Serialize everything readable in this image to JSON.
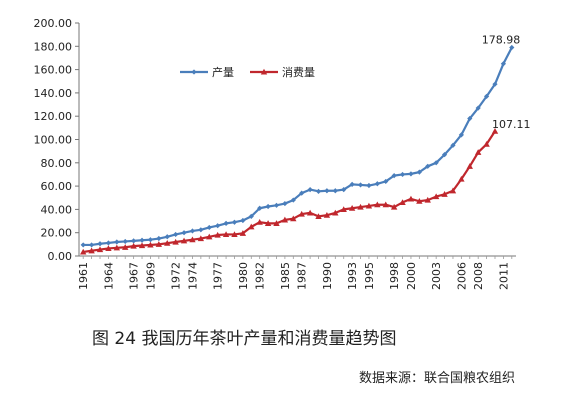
{
  "chart_data": {
    "type": "line",
    "title": "",
    "xlabel": "",
    "ylabel": "",
    "ylim": [
      0,
      200
    ],
    "yticks": [
      "0.00",
      "20.00",
      "40.00",
      "60.00",
      "80.00",
      "100.00",
      "120.00",
      "140.00",
      "160.00",
      "180.00",
      "200.00"
    ],
    "xticks": [
      "1961",
      "1964",
      "1967",
      "1969",
      "1972",
      "1974",
      "1977",
      "1980",
      "1982",
      "1985",
      "1987",
      "1990",
      "1993",
      "1995",
      "1998",
      "2000",
      "2003",
      "2006",
      "2008",
      "2011"
    ],
    "legend_position": "upper-left",
    "grid": false,
    "series": [
      {
        "name": "产量",
        "color": "#4a7ebb",
        "marker": "diamond",
        "x": [
          1961,
          1962,
          1963,
          1964,
          1965,
          1966,
          1967,
          1968,
          1969,
          1970,
          1971,
          1972,
          1973,
          1974,
          1975,
          1976,
          1977,
          1978,
          1979,
          1980,
          1981,
          1982,
          1983,
          1984,
          1985,
          1986,
          1987,
          1988,
          1989,
          1990,
          1991,
          1992,
          1993,
          1994,
          1995,
          1996,
          1997,
          1998,
          1999,
          2000,
          2001,
          2002,
          2003,
          2004,
          2005,
          2006,
          2007,
          2008,
          2009,
          2010,
          2011,
          2012
        ],
        "values": [
          9.5,
          9.5,
          10.5,
          11.2,
          12,
          12.5,
          13,
          13.5,
          14,
          15,
          16.5,
          18.5,
          20,
          21.5,
          22.5,
          24.5,
          26,
          28,
          29,
          30.5,
          34,
          41,
          42.5,
          43.5,
          45,
          48,
          54,
          57,
          55.5,
          56,
          56,
          57,
          61.5,
          61,
          60.5,
          62,
          64,
          69,
          70,
          70.5,
          72,
          77,
          80,
          87,
          95,
          104,
          118,
          127,
          137,
          147.5,
          165,
          178.98
        ]
      },
      {
        "name": "消费量",
        "color": "#c0272d",
        "marker": "triangle",
        "x": [
          1961,
          1962,
          1963,
          1964,
          1965,
          1966,
          1967,
          1968,
          1969,
          1970,
          1971,
          1972,
          1973,
          1974,
          1975,
          1976,
          1977,
          1978,
          1979,
          1980,
          1981,
          1982,
          1983,
          1984,
          1985,
          1986,
          1987,
          1988,
          1989,
          1990,
          1991,
          1992,
          1993,
          1994,
          1995,
          1996,
          1997,
          1998,
          1999,
          2000,
          2001,
          2002,
          2003,
          2004,
          2005,
          2006,
          2007,
          2008,
          2009,
          2010
        ],
        "values": [
          3.5,
          4.5,
          5.5,
          6.5,
          7,
          7.5,
          8.5,
          9,
          9.5,
          10,
          11,
          12,
          13,
          14,
          15,
          16.5,
          18,
          18.5,
          18.5,
          19.5,
          25,
          29,
          28,
          28,
          31,
          32,
          36,
          37,
          34,
          35,
          37,
          40,
          41,
          42,
          43,
          44,
          44,
          42,
          46,
          49,
          47,
          48,
          51,
          53,
          56,
          66,
          77,
          89,
          96,
          107.11
        ]
      }
    ],
    "annotations": [
      {
        "series": 0,
        "text": "178.98"
      },
      {
        "series": 1,
        "text": "107.11"
      }
    ]
  },
  "caption": "图 24  我国历年茶叶产量和消费量趋势图",
  "source": "数据来源：联合国粮农组织"
}
